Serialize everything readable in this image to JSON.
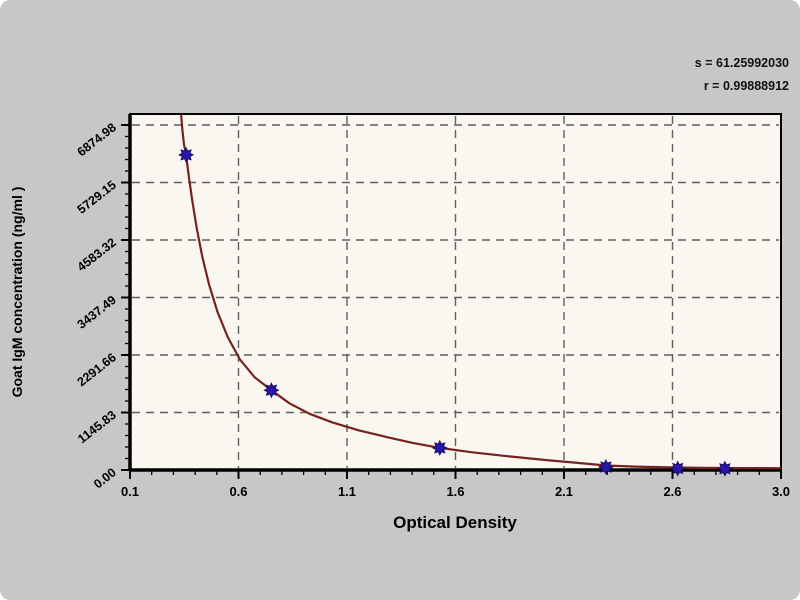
{
  "window": {
    "background_color": "#c7c7c7",
    "plot_background_color": "#faf6f0"
  },
  "chart_data": {
    "type": "line",
    "title": "",
    "xlabel": "Optical Density",
    "ylabel": "Goat IgM concentration (ng/ml )",
    "xlim": [
      0.1,
      3.0
    ],
    "ylim": [
      0,
      6874.98
    ],
    "x_tick_labels": [
      "0.1",
      "0.6",
      "1.1",
      "1.6",
      "2.1",
      "2.6",
      "3.0"
    ],
    "y_tick_labels": [
      "0.00",
      "1145.83",
      "2291.66",
      "3437.49",
      "4583.32",
      "5729.15",
      "6874.98"
    ],
    "minor_ticks_per_interval": 4,
    "grid": "dashed",
    "legend_position": "none",
    "annotations": [
      "s = 61.25992030",
      "r = 0.99888912"
    ],
    "series": [
      {
        "name": "standard-points",
        "kind": "scatter",
        "marker": "star",
        "x": [
          0.35,
          0.73,
          1.48,
          2.22,
          2.54,
          2.75
        ],
        "y": [
          6280,
          1590,
          440,
          60,
          30,
          25
        ]
      },
      {
        "name": "fitted-curve",
        "kind": "line",
        "points": [
          [
            0.327,
            7100
          ],
          [
            0.333,
            6800
          ],
          [
            0.34,
            6500
          ],
          [
            0.35,
            6280
          ],
          [
            0.362,
            5850
          ],
          [
            0.378,
            5350
          ],
          [
            0.398,
            4800
          ],
          [
            0.422,
            4250
          ],
          [
            0.452,
            3700
          ],
          [
            0.49,
            3150
          ],
          [
            0.535,
            2650
          ],
          [
            0.59,
            2200
          ],
          [
            0.655,
            1850
          ],
          [
            0.73,
            1590
          ],
          [
            0.81,
            1330
          ],
          [
            0.9,
            1120
          ],
          [
            1.0,
            950
          ],
          [
            1.12,
            790
          ],
          [
            1.25,
            650
          ],
          [
            1.36,
            540
          ],
          [
            1.48,
            440
          ],
          [
            1.62,
            355
          ],
          [
            1.78,
            275
          ],
          [
            1.95,
            200
          ],
          [
            2.1,
            140
          ],
          [
            2.22,
            90
          ],
          [
            2.35,
            68
          ],
          [
            2.5,
            52
          ],
          [
            2.65,
            42
          ],
          [
            2.8,
            38
          ],
          [
            3.0,
            35
          ]
        ]
      }
    ],
    "colors": {
      "curve": "#76231f",
      "marker_fill": "#2a16a8",
      "marker_stroke": "#150d60",
      "grid": "#5f5f5f",
      "axis": "#000000",
      "text": "#000000"
    }
  }
}
